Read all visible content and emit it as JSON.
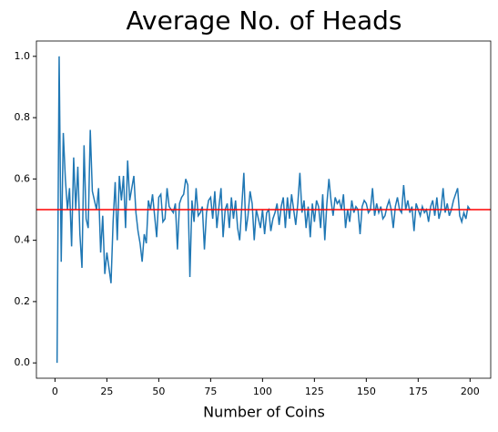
{
  "chart_data": {
    "type": "line",
    "title": "Average No. of Heads",
    "xlabel": "Number of Coins",
    "x": [
      1,
      2,
      3,
      4,
      5,
      6,
      7,
      8,
      9,
      10,
      11,
      12,
      13,
      14,
      15,
      16,
      17,
      18,
      19,
      20,
      21,
      22,
      23,
      24,
      25,
      26,
      27,
      28,
      29,
      30,
      31,
      32,
      33,
      34,
      35,
      36,
      37,
      38,
      39,
      40,
      41,
      42,
      43,
      44,
      45,
      46,
      47,
      48,
      49,
      50,
      51,
      52,
      53,
      54,
      55,
      56,
      57,
      58,
      59,
      60,
      61,
      62,
      63,
      64,
      65,
      66,
      67,
      68,
      69,
      70,
      71,
      72,
      73,
      74,
      75,
      76,
      77,
      78,
      79,
      80,
      81,
      82,
      83,
      84,
      85,
      86,
      87,
      88,
      89,
      90,
      91,
      92,
      93,
      94,
      95,
      96,
      97,
      98,
      99,
      100,
      101,
      102,
      103,
      104,
      105,
      106,
      107,
      108,
      109,
      110,
      111,
      112,
      113,
      114,
      115,
      116,
      117,
      118,
      119,
      120,
      121,
      122,
      123,
      124,
      125,
      126,
      127,
      128,
      129,
      130,
      131,
      132,
      133,
      134,
      135,
      136,
      137,
      138,
      139,
      140,
      141,
      142,
      143,
      144,
      145,
      146,
      147,
      148,
      149,
      150,
      151,
      152,
      153,
      154,
      155,
      156,
      157,
      158,
      159,
      160,
      161,
      162,
      163,
      164,
      165,
      166,
      167,
      168,
      169,
      170,
      171,
      172,
      173,
      174,
      175,
      176,
      177,
      178,
      179,
      180,
      181,
      182,
      183,
      184,
      185,
      186,
      187,
      188,
      189,
      190,
      191,
      192,
      193,
      194,
      195,
      196,
      197,
      198,
      199,
      200
    ],
    "series": [
      {
        "color": "#1f77b4",
        "values": [
          0,
          1,
          0.33,
          0.75,
          0.6,
          0.5,
          0.57,
          0.38,
          0.67,
          0.5,
          0.64,
          0.42,
          0.31,
          0.71,
          0.47,
          0.44,
          0.76,
          0.56,
          0.53,
          0.5,
          0.57,
          0.36,
          0.48,
          0.29,
          0.36,
          0.31,
          0.26,
          0.46,
          0.59,
          0.4,
          0.61,
          0.53,
          0.61,
          0.44,
          0.66,
          0.53,
          0.57,
          0.61,
          0.49,
          0.43,
          0.39,
          0.33,
          0.42,
          0.39,
          0.53,
          0.5,
          0.55,
          0.48,
          0.41,
          0.54,
          0.55,
          0.46,
          0.47,
          0.57,
          0.51,
          0.5,
          0.49,
          0.52,
          0.37,
          0.52,
          0.54,
          0.55,
          0.6,
          0.58,
          0.28,
          0.53,
          0.46,
          0.57,
          0.48,
          0.49,
          0.51,
          0.37,
          0.49,
          0.53,
          0.54,
          0.47,
          0.56,
          0.44,
          0.51,
          0.57,
          0.41,
          0.5,
          0.52,
          0.44,
          0.54,
          0.47,
          0.53,
          0.44,
          0.4,
          0.51,
          0.62,
          0.43,
          0.48,
          0.56,
          0.52,
          0.4,
          0.5,
          0.47,
          0.44,
          0.5,
          0.42,
          0.49,
          0.5,
          0.43,
          0.47,
          0.49,
          0.52,
          0.45,
          0.51,
          0.54,
          0.44,
          0.54,
          0.47,
          0.55,
          0.5,
          0.45,
          0.52,
          0.62,
          0.49,
          0.53,
          0.44,
          0.51,
          0.41,
          0.52,
          0.46,
          0.53,
          0.51,
          0.44,
          0.55,
          0.4,
          0.52,
          0.6,
          0.53,
          0.48,
          0.54,
          0.52,
          0.53,
          0.5,
          0.55,
          0.44,
          0.5,
          0.46,
          0.53,
          0.49,
          0.51,
          0.5,
          0.42,
          0.51,
          0.53,
          0.52,
          0.49,
          0.5,
          0.57,
          0.48,
          0.52,
          0.49,
          0.51,
          0.47,
          0.48,
          0.51,
          0.53,
          0.5,
          0.44,
          0.51,
          0.54,
          0.5,
          0.49,
          0.58,
          0.5,
          0.53,
          0.49,
          0.51,
          0.43,
          0.52,
          0.5,
          0.48,
          0.51,
          0.49,
          0.5,
          0.46,
          0.51,
          0.53,
          0.48,
          0.54,
          0.47,
          0.5,
          0.57,
          0.49,
          0.52,
          0.48,
          0.5,
          0.53,
          0.55,
          0.57,
          0.48,
          0.46,
          0.49,
          0.47,
          0.51,
          0.5
        ]
      }
    ],
    "hline": {
      "value": 0.5,
      "color": "red"
    },
    "xlim": [
      -8.95,
      209.95
    ],
    "xticks": [
      0,
      25,
      50,
      75,
      100,
      125,
      150,
      175,
      200
    ],
    "ylim": [
      -0.05,
      1.05
    ],
    "yticks": [
      {
        "value": 0,
        "label": "0.0"
      },
      0.2,
      0.4,
      0.6,
      0.8,
      {
        "value": 1,
        "label": "1.0"
      }
    ]
  }
}
